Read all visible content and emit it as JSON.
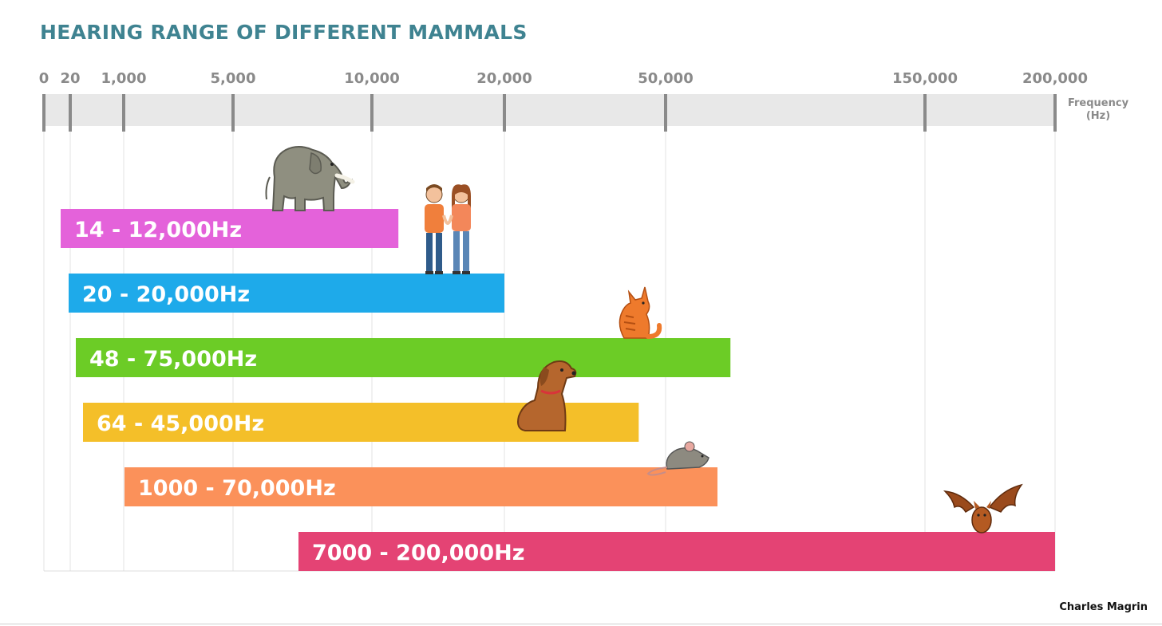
{
  "chart_data": {
    "type": "bar",
    "orientation": "horizontal",
    "title": "HEARING RANGE OF DIFFERENT MAMMALS",
    "xlabel": "Frequency (Hz)",
    "xlabel_lines": [
      "Frequency",
      "(Hz)"
    ],
    "x_scale": "piecewise",
    "x_ticks": [
      {
        "value": 0,
        "label": "0"
      },
      {
        "value": 20,
        "label": "20"
      },
      {
        "value": 1000,
        "label": "1,000"
      },
      {
        "value": 5000,
        "label": "5,000"
      },
      {
        "value": 10000,
        "label": "10,000"
      },
      {
        "value": 20000,
        "label": "20,000"
      },
      {
        "value": 50000,
        "label": "50,000"
      },
      {
        "value": 150000,
        "label": "150,000"
      },
      {
        "value": 200000,
        "label": "200,000"
      }
    ],
    "series": [
      {
        "animal": "elephant",
        "icon": "elephant-icon",
        "min": 14,
        "max": 12000,
        "label": "14 - 12,000Hz",
        "color": "#e462da"
      },
      {
        "animal": "human",
        "icon": "human-couple-icon",
        "min": 20,
        "max": 20000,
        "label": "20 - 20,000Hz",
        "color": "#1eaaea"
      },
      {
        "animal": "cat",
        "icon": "cat-icon",
        "min": 48,
        "max": 75000,
        "label": "48 - 75,000Hz",
        "color": "#6ccc26"
      },
      {
        "animal": "dog",
        "icon": "dog-icon",
        "min": 64,
        "max": 45000,
        "label": "64 - 45,000Hz",
        "color": "#f4bf29"
      },
      {
        "animal": "mouse",
        "icon": "mouse-icon",
        "min": 1000,
        "max": 70000,
        "label": "1000 - 70,000Hz",
        "color": "#fb915a"
      },
      {
        "animal": "bat",
        "icon": "bat-icon",
        "min": 7000,
        "max": 200000,
        "label": "7000 - 200,000Hz",
        "color": "#e44374"
      }
    ]
  },
  "colors": {
    "title": "#3f8391",
    "axis_band": "#e8e8e8",
    "tick": "#8a8a8a",
    "gridline": "#e3e3e3"
  },
  "credit": "Charles Magrin"
}
